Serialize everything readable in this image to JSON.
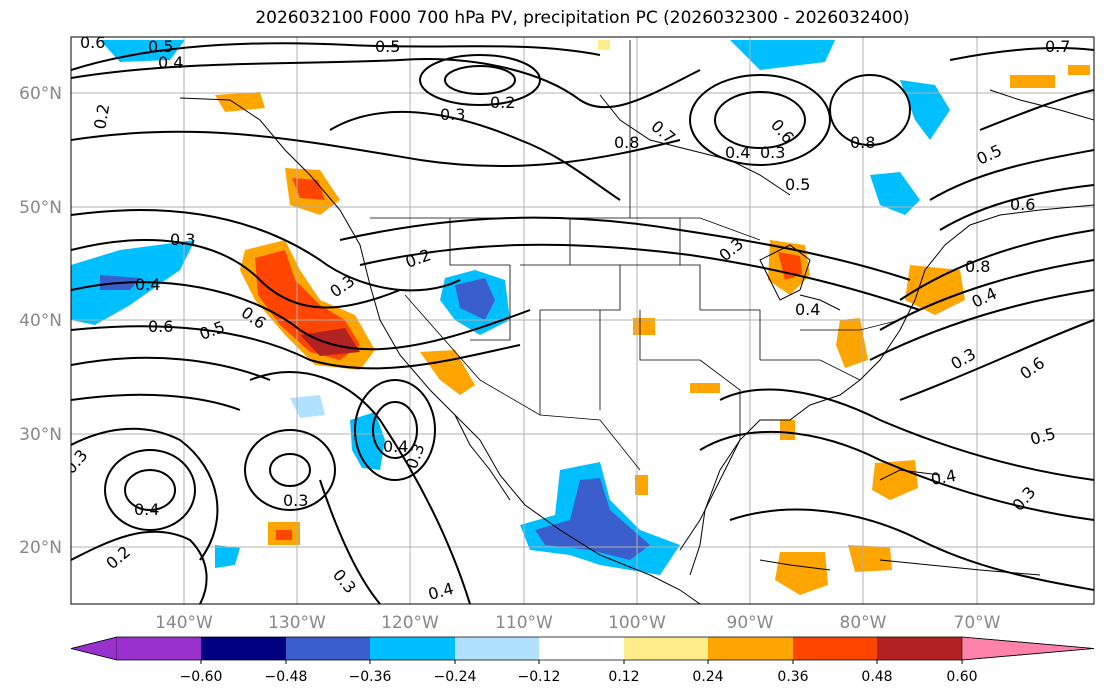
{
  "title": "2026032100 F000 700 hPa PV, precipitation PC (2026032300 - 2026032400)",
  "map": {
    "latitude_labels": [
      "60°N",
      "50°N",
      "40°N",
      "30°N",
      "20°N"
    ],
    "longitude_labels": [
      "140°W",
      "130°W",
      "120°W",
      "110°W",
      "100°W",
      "90°W",
      "80°W",
      "70°W"
    ],
    "contour_labels": [
      "0.6",
      "0.5",
      "0.4",
      "0.5",
      "0.7",
      "0.2",
      "0.3",
      "0.2",
      "0.8",
      "0.7",
      "0.4",
      "0.3",
      "0.6",
      "0.8",
      "0.5",
      "0.6",
      "0.5",
      "0.3",
      "0.4",
      "0.6",
      "0.5",
      "0.6",
      "0.2",
      "0.3",
      "0.3",
      "0.4",
      "0.8",
      "0.4",
      "0.3",
      "0.6",
      "0.5",
      "0.3",
      "0.4",
      "0.3",
      "0.3",
      "0.4",
      "0.2",
      "0.3",
      "0.4",
      "0.4",
      "0.3"
    ]
  },
  "colorbar": {
    "ticks": [
      "−0.60",
      "−0.48",
      "−0.36",
      "−0.24",
      "−0.12",
      "0.12",
      "0.24",
      "0.36",
      "0.48",
      "0.60"
    ],
    "colors": [
      "#9932cc",
      "#000080",
      "#3a5fcd",
      "#00bfff",
      "#b0e2ff",
      "#ffffff",
      "#ffec8b",
      "#ffa500",
      "#ff4500",
      "#b22222",
      "#ff82ab"
    ]
  }
}
